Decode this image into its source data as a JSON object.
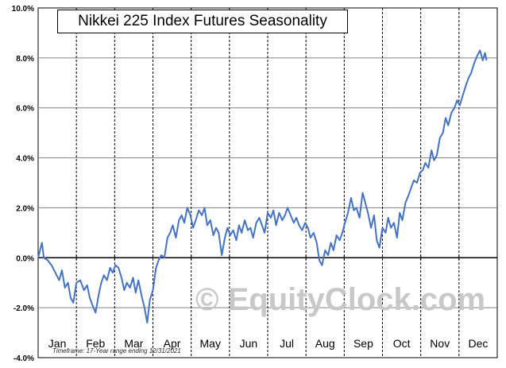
{
  "chart_data": {
    "type": "line",
    "title": "Nikkei 225 Index Futures Seasonality",
    "xlabel": "",
    "ylabel": "",
    "months": [
      "Jan",
      "Feb",
      "Mar",
      "Apr",
      "May",
      "Jun",
      "Jul",
      "Aug",
      "Sep",
      "Oct",
      "Nov",
      "Dec"
    ],
    "y_ticks": [
      "10.0%",
      "8.0%",
      "6.0%",
      "4.0%",
      "2.0%",
      "0.0%",
      "-2.0%",
      "-4.0%"
    ],
    "ylim": [
      -4,
      10
    ],
    "x_unit": "month of year (0 = Jan 1, 12 = Dec 31)",
    "xlim": [
      0,
      12
    ],
    "grid": "dashed vertical at month boundaries, solid horizontal at 2% steps",
    "line_color": "#4472C4",
    "series": [
      {
        "values_percent": [
          [
            0.0,
            0.0
          ],
          [
            0.05,
            0.3
          ],
          [
            0.1,
            0.6
          ],
          [
            0.15,
            0.0
          ],
          [
            0.25,
            -0.1
          ],
          [
            0.35,
            -0.3
          ],
          [
            0.45,
            -0.6
          ],
          [
            0.55,
            -0.9
          ],
          [
            0.62,
            -0.5
          ],
          [
            0.7,
            -1.2
          ],
          [
            0.78,
            -1.0
          ],
          [
            0.85,
            -1.6
          ],
          [
            0.92,
            -1.8
          ],
          [
            1.0,
            -1.0
          ],
          [
            1.1,
            -0.9
          ],
          [
            1.2,
            -1.3
          ],
          [
            1.28,
            -1.1
          ],
          [
            1.35,
            -1.6
          ],
          [
            1.42,
            -1.9
          ],
          [
            1.5,
            -2.2
          ],
          [
            1.58,
            -1.5
          ],
          [
            1.65,
            -1.0
          ],
          [
            1.72,
            -0.7
          ],
          [
            1.8,
            -0.9
          ],
          [
            1.88,
            -0.4
          ],
          [
            1.95,
            -0.6
          ],
          [
            2.02,
            -0.3
          ],
          [
            2.1,
            -0.4
          ],
          [
            2.18,
            -0.8
          ],
          [
            2.25,
            -1.3
          ],
          [
            2.32,
            -1.0
          ],
          [
            2.4,
            -1.2
          ],
          [
            2.48,
            -0.8
          ],
          [
            2.55,
            -1.4
          ],
          [
            2.62,
            -0.9
          ],
          [
            2.7,
            -1.5
          ],
          [
            2.78,
            -2.0
          ],
          [
            2.85,
            -2.6
          ],
          [
            2.92,
            -1.7
          ],
          [
            3.0,
            -1.3
          ],
          [
            3.08,
            -0.4
          ],
          [
            3.15,
            -0.1
          ],
          [
            3.22,
            0.1
          ],
          [
            3.3,
            0.0
          ],
          [
            3.38,
            0.8
          ],
          [
            3.45,
            1.0
          ],
          [
            3.52,
            1.3
          ],
          [
            3.6,
            0.8
          ],
          [
            3.68,
            1.5
          ],
          [
            3.75,
            1.7
          ],
          [
            3.82,
            1.4
          ],
          [
            3.9,
            2.0
          ],
          [
            3.98,
            1.7
          ],
          [
            4.05,
            1.2
          ],
          [
            4.12,
            1.5
          ],
          [
            4.2,
            1.9
          ],
          [
            4.28,
            1.7
          ],
          [
            4.35,
            2.0
          ],
          [
            4.42,
            1.3
          ],
          [
            4.5,
            1.5
          ],
          [
            4.58,
            0.9
          ],
          [
            4.65,
            1.2
          ],
          [
            4.72,
            1.0
          ],
          [
            4.8,
            0.1
          ],
          [
            4.88,
            0.8
          ],
          [
            4.95,
            1.2
          ],
          [
            5.02,
            0.9
          ],
          [
            5.1,
            1.1
          ],
          [
            5.18,
            0.7
          ],
          [
            5.25,
            1.3
          ],
          [
            5.32,
            1.0
          ],
          [
            5.4,
            1.5
          ],
          [
            5.48,
            1.1
          ],
          [
            5.55,
            1.2
          ],
          [
            5.62,
            0.8
          ],
          [
            5.7,
            1.4
          ],
          [
            5.78,
            1.6
          ],
          [
            5.85,
            1.3
          ],
          [
            5.92,
            1.0
          ],
          [
            6.0,
            1.8
          ],
          [
            6.08,
            1.6
          ],
          [
            6.15,
            1.9
          ],
          [
            6.22,
            1.3
          ],
          [
            6.3,
            1.8
          ],
          [
            6.38,
            1.5
          ],
          [
            6.45,
            1.7
          ],
          [
            6.52,
            2.0
          ],
          [
            6.6,
            1.7
          ],
          [
            6.68,
            1.4
          ],
          [
            6.75,
            1.6
          ],
          [
            6.82,
            1.3
          ],
          [
            6.9,
            1.1
          ],
          [
            6.98,
            1.4
          ],
          [
            7.05,
            1.2
          ],
          [
            7.12,
            0.8
          ],
          [
            7.2,
            1.0
          ],
          [
            7.28,
            0.6
          ],
          [
            7.35,
            -0.1
          ],
          [
            7.42,
            -0.3
          ],
          [
            7.5,
            0.3
          ],
          [
            7.58,
            0.1
          ],
          [
            7.65,
            0.6
          ],
          [
            7.72,
            0.3
          ],
          [
            7.8,
            0.9
          ],
          [
            7.88,
            0.7
          ],
          [
            7.95,
            1.0
          ],
          [
            8.02,
            1.4
          ],
          [
            8.1,
            1.8
          ],
          [
            8.18,
            2.4
          ],
          [
            8.25,
            1.9
          ],
          [
            8.32,
            2.0
          ],
          [
            8.4,
            1.6
          ],
          [
            8.48,
            2.6
          ],
          [
            8.55,
            2.2
          ],
          [
            8.62,
            1.8
          ],
          [
            8.7,
            1.2
          ],
          [
            8.78,
            1.7
          ],
          [
            8.85,
            0.7
          ],
          [
            8.92,
            0.4
          ],
          [
            9.0,
            1.2
          ],
          [
            9.08,
            1.0
          ],
          [
            9.15,
            1.6
          ],
          [
            9.22,
            1.2
          ],
          [
            9.3,
            1.4
          ],
          [
            9.38,
            0.8
          ],
          [
            9.45,
            1.8
          ],
          [
            9.52,
            1.5
          ],
          [
            9.6,
            2.2
          ],
          [
            9.68,
            2.5
          ],
          [
            9.75,
            2.8
          ],
          [
            9.82,
            3.1
          ],
          [
            9.9,
            3.0
          ],
          [
            9.98,
            3.4
          ],
          [
            10.05,
            3.5
          ],
          [
            10.12,
            3.8
          ],
          [
            10.2,
            3.6
          ],
          [
            10.28,
            4.3
          ],
          [
            10.35,
            3.9
          ],
          [
            10.42,
            4.1
          ],
          [
            10.5,
            4.8
          ],
          [
            10.58,
            5.0
          ],
          [
            10.65,
            5.6
          ],
          [
            10.72,
            5.3
          ],
          [
            10.8,
            5.8
          ],
          [
            10.88,
            6.0
          ],
          [
            10.95,
            6.3
          ],
          [
            11.02,
            6.1
          ],
          [
            11.1,
            6.5
          ],
          [
            11.18,
            6.9
          ],
          [
            11.25,
            7.2
          ],
          [
            11.32,
            7.4
          ],
          [
            11.4,
            7.8
          ],
          [
            11.48,
            8.1
          ],
          [
            11.55,
            8.3
          ],
          [
            11.62,
            7.9
          ],
          [
            11.68,
            8.2
          ],
          [
            11.72,
            7.9
          ]
        ]
      }
    ],
    "footnote": "Timeframe: 17-Year range ending 12/31/2021",
    "watermark": "© EquityClock.com"
  }
}
